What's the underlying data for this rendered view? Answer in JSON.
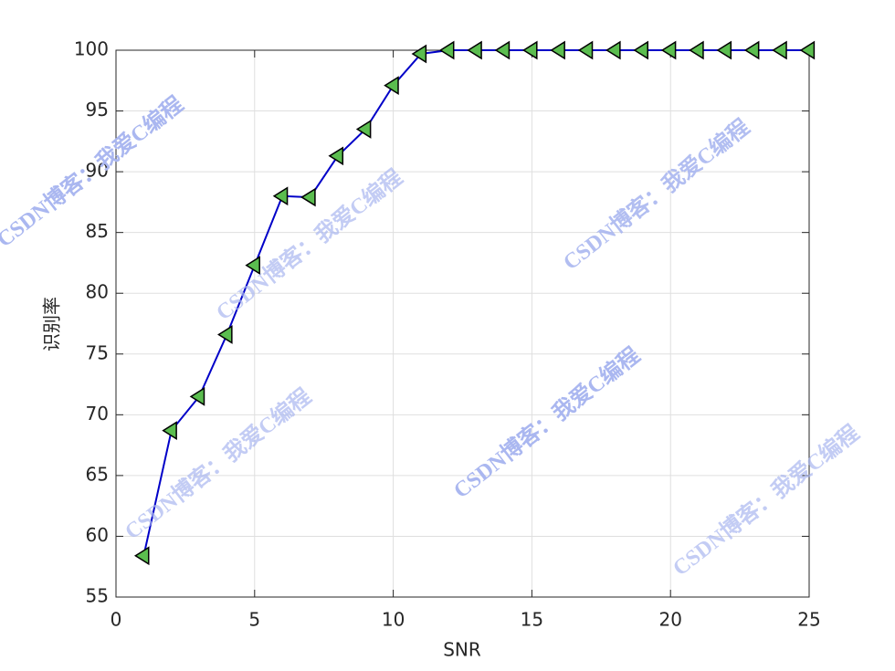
{
  "chart_data": {
    "type": "line",
    "x_label": "SNR",
    "y_label": "识别率",
    "x": [
      1,
      2,
      3,
      4,
      5,
      6,
      7,
      8,
      9,
      10,
      11,
      12,
      13,
      14,
      15,
      16,
      17,
      18,
      19,
      20,
      21,
      22,
      23,
      24,
      25
    ],
    "series": [
      {
        "color": "#0000c8",
        "marker_color": "#5bbd4f",
        "values": [
          58.4,
          68.7,
          71.5,
          76.6,
          82.3,
          88.0,
          87.9,
          91.3,
          93.5,
          97.1,
          99.7,
          100,
          100,
          100,
          100,
          100,
          100,
          100,
          100,
          100,
          100,
          100,
          100,
          100,
          100
        ]
      }
    ],
    "xlim": [
      0,
      25
    ],
    "xticks": [
      0,
      5,
      10,
      15,
      20,
      25
    ],
    "ylim": [
      55,
      100
    ],
    "yticks": [
      55,
      60,
      65,
      70,
      75,
      80,
      85,
      90,
      95,
      100
    ],
    "grid": true,
    "watermark": "CSDN博客：我爱C编程"
  }
}
